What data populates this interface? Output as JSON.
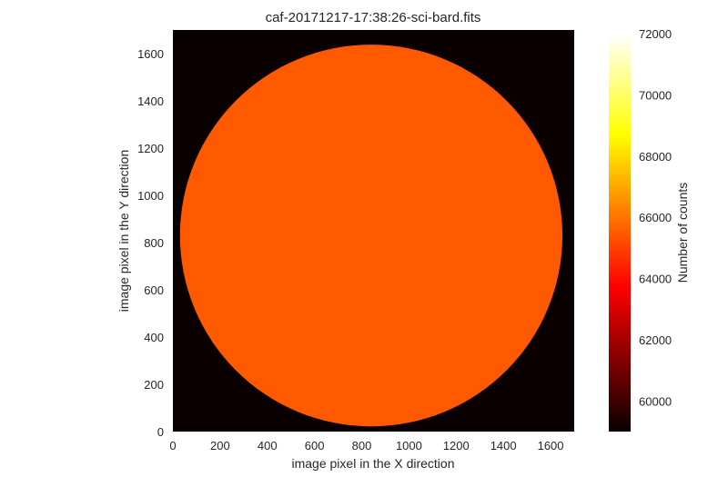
{
  "chart_data": {
    "type": "heatmap",
    "title": "caf-20171217-17:38:26-sci-bard.fits",
    "xlabel": "image pixel in the X direction",
    "ylabel": "image pixel in the Y direction",
    "xlim": [
      0,
      1700
    ],
    "ylim": [
      0,
      1700
    ],
    "x_ticks": [
      0,
      200,
      400,
      600,
      800,
      1000,
      1200,
      1400,
      1600
    ],
    "y_ticks": [
      0,
      200,
      400,
      600,
      800,
      1000,
      1200,
      1400,
      1600
    ],
    "background_value": 59000,
    "disk": {
      "center_x": 840,
      "center_y": 830,
      "radius": 810,
      "value": 66200
    },
    "colorbar": {
      "label": "Number of counts",
      "colormap": "hot",
      "range": [
        59000,
        72000
      ],
      "ticks": [
        60000,
        62000,
        64000,
        66000,
        68000,
        70000,
        72000
      ]
    },
    "grid": false
  }
}
